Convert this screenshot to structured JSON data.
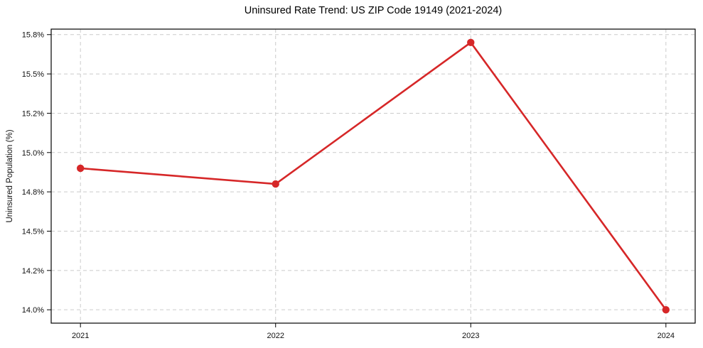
{
  "title": "Uninsured Rate Trend: US ZIP Code 19149 (2021-2024)",
  "ylabel": "Uninsured Population (%)",
  "colors": {
    "line": "#d62728",
    "grid": "#cbcbcb",
    "spine": "#000000",
    "text": "#111111",
    "background": "#ffffff"
  },
  "chart_data": {
    "type": "line",
    "title": "Uninsured Rate Trend: US ZIP Code 19149 (2021-2024)",
    "xlabel": "",
    "ylabel": "Uninsured Population (%)",
    "x": [
      2021,
      2022,
      2023,
      2024
    ],
    "values": [
      14.9,
      14.8,
      15.7,
      14.0
    ],
    "xticks": {
      "values": [
        2021,
        2022,
        2023,
        2024
      ],
      "labels": [
        "2021",
        "2022",
        "2023",
        "2024"
      ]
    },
    "yticks": {
      "values": [
        14.0,
        14.25,
        14.5,
        14.75,
        15.0,
        15.25,
        15.5,
        15.75
      ],
      "labels": [
        "14.0%",
        "14.2%",
        "14.5%",
        "14.8%",
        "15.0%",
        "15.2%",
        "15.5%",
        "15.8%"
      ]
    },
    "xlim": [
      2020.85,
      2024.15
    ],
    "ylim": [
      13.915,
      15.785
    ],
    "grid": true,
    "legend": false,
    "marker": "circle",
    "line_color": "#d62728",
    "line_width": 2.6,
    "marker_radius": 5.2
  }
}
